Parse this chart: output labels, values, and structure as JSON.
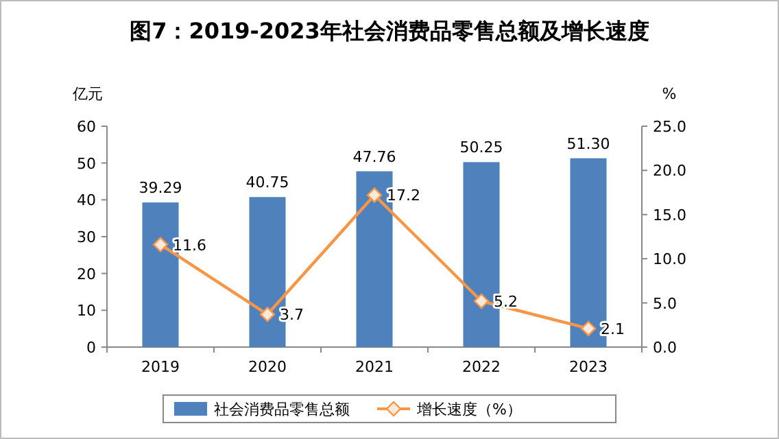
{
  "chart_data": {
    "type": "bar",
    "title": "图7：2019-2023年社会消费品零售总额及增长速度",
    "ylabel": "亿元",
    "y2label": "%",
    "categories": [
      "2019",
      "2020",
      "2021",
      "2022",
      "2023"
    ],
    "series": [
      {
        "name": "社会消费品零售总额",
        "color": "#4f81bd",
        "values": [
          39.29,
          40.75,
          47.76,
          50.25,
          51.3
        ],
        "value_labels": [
          "39.29",
          "40.75",
          "47.76",
          "50.25",
          "51.30"
        ]
      },
      {
        "name": "增长速度（%）",
        "type": "line",
        "axis": "y2",
        "color": "#f79646",
        "marker": "diamond",
        "values": [
          11.6,
          3.7,
          17.2,
          5.2,
          2.1
        ],
        "value_labels": [
          "11.6",
          "3.7",
          "17.2",
          "5.2",
          "2.1"
        ]
      }
    ],
    "ylim": [
      0,
      60
    ],
    "yticks": [
      0,
      10,
      20,
      30,
      40,
      50,
      60
    ],
    "y2lim": [
      0,
      25
    ],
    "y2ticks": [
      {
        "value": 0,
        "label": "0.0"
      },
      {
        "value": 5,
        "label": "5.0"
      },
      {
        "value": 10,
        "label": "10.0"
      },
      {
        "value": 15,
        "label": "15.0"
      },
      {
        "value": 20,
        "label": "20.0"
      },
      {
        "value": 25,
        "label": "25.0"
      }
    ],
    "legend": "bottom",
    "grid": false
  }
}
